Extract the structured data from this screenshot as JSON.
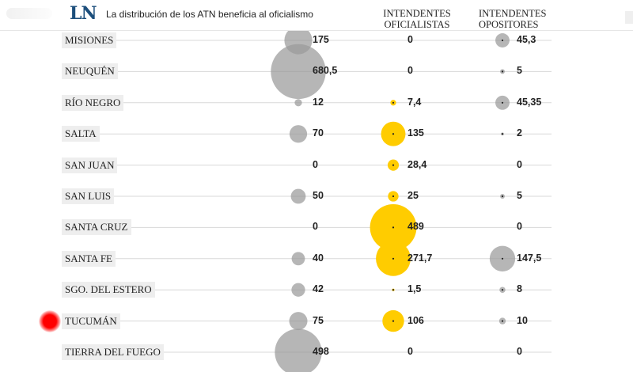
{
  "header": {
    "logo": "LN",
    "title": "La distribución de los ATN beneficia al oficialismo",
    "col_oficialistas": "INTENDENTES\nOFICIALISTAS",
    "col_opositores": "INTENDENTES\nOPOSITORES"
  },
  "colors": {
    "total_bubble": "#9a9a9a",
    "oficialistas_bubble": "#ffcc00",
    "opositores_bubble": "#9a9a9a",
    "highlight_marker": "#ff0000",
    "row_line": "#d8d8d8"
  },
  "chart_data": {
    "type": "bubble-table",
    "columns": [
      "",
      "INTENDENTES OFICIALISTAS",
      "INTENDENTES OPOSITORES"
    ],
    "rows": [
      {
        "label": "MISIONES",
        "total": "175",
        "oficialistas": "0",
        "opositores": "45,3"
      },
      {
        "label": "NEUQUÉN",
        "total": "680,5",
        "oficialistas": "0",
        "opositores": "5"
      },
      {
        "label": "RÍO NEGRO",
        "total": "12",
        "oficialistas": "7,4",
        "opositores": "45,35"
      },
      {
        "label": "SALTA",
        "total": "70",
        "oficialistas": "135",
        "opositores": "2"
      },
      {
        "label": "SAN JUAN",
        "total": "0",
        "oficialistas": "28,4",
        "opositores": "0"
      },
      {
        "label": "SAN LUIS",
        "total": "50",
        "oficialistas": "25",
        "opositores": "5"
      },
      {
        "label": "SANTA CRUZ",
        "total": "0",
        "oficialistas": "489",
        "opositores": "0"
      },
      {
        "label": "SANTA FE",
        "total": "40",
        "oficialistas": "271,7",
        "opositores": "147,5"
      },
      {
        "label": "SGO. DEL ESTERO",
        "total": "42",
        "oficialistas": "1,5",
        "opositores": "8"
      },
      {
        "label": "TUCUMÁN",
        "total": "75",
        "oficialistas": "106",
        "opositores": "10",
        "highlighted": true
      },
      {
        "label": "TIERRA DEL FUEGO",
        "total": "498",
        "oficialistas": "0",
        "opositores": "0"
      }
    ]
  }
}
